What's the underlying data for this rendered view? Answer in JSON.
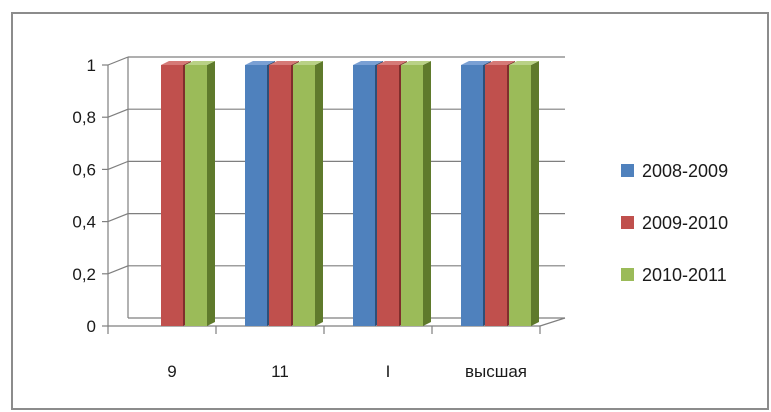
{
  "chart_data": {
    "type": "bar",
    "title": "",
    "xlabel": "",
    "ylabel": "",
    "categories": [
      "9",
      "11",
      "I",
      "высшая"
    ],
    "series": [
      {
        "name": "2008-2009",
        "values": [
          0,
          1,
          1,
          1
        ],
        "color": "#4f81bd",
        "side_color": "#2d4f78",
        "top_color": "#7aa0d4"
      },
      {
        "name": "2009-2010",
        "values": [
          1,
          1,
          1,
          1
        ],
        "color": "#c0504d",
        "side_color": "#7f2e2c",
        "top_color": "#d57a77"
      },
      {
        "name": "2010-2011",
        "values": [
          1,
          1,
          1,
          1
        ],
        "color": "#9bbb59",
        "side_color": "#5f7a2c",
        "top_color": "#b9d186"
      }
    ],
    "ylim": [
      0,
      1
    ],
    "yticks": [
      "0",
      "0,2",
      "0,4",
      "0,6",
      "0,8",
      "1"
    ],
    "grid": true,
    "style": "3d-clustered-column",
    "legend_position": "right"
  }
}
